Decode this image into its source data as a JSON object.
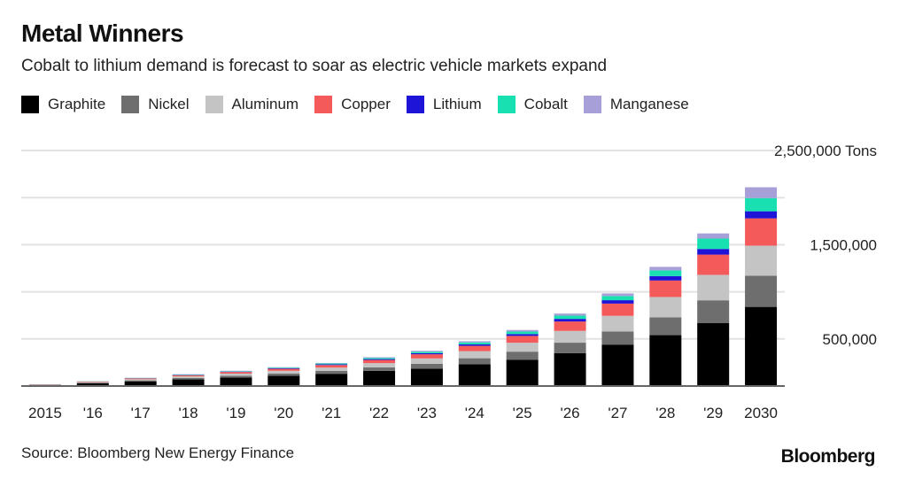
{
  "title": "Metal Winners",
  "subtitle": "Cobalt to lithium demand is forecast to soar as electric vehicle markets expand",
  "source": "Source: Bloomberg New Energy Finance",
  "brand": "Bloomberg",
  "chart_data": {
    "type": "bar",
    "stacked": true,
    "categories": [
      "2015",
      "'16",
      "'17",
      "'18",
      "'19",
      "'20",
      "'21",
      "'22",
      "'23",
      "'24",
      "'25",
      "'26",
      "'27",
      "'28",
      "'29",
      "2030"
    ],
    "y_tick_labels": [
      {
        "value": 2500000,
        "label": "2,500,000 Tons"
      },
      {
        "value": 1500000,
        "label": "1,500,000"
      },
      {
        "value": 500000,
        "label": "500,000"
      }
    ],
    "ylim": [
      0,
      2500000
    ],
    "grid": true,
    "series": [
      {
        "name": "Graphite",
        "color": "#000000",
        "values": [
          10000,
          30000,
          50000,
          70000,
          90000,
          110000,
          130000,
          160000,
          185000,
          230000,
          280000,
          350000,
          440000,
          540000,
          670000,
          840000
        ]
      },
      {
        "name": "Nickel",
        "color": "#6e6e6e",
        "values": [
          3000,
          6000,
          10000,
          15000,
          20000,
          24000,
          30000,
          38000,
          50000,
          65000,
          85000,
          110000,
          140000,
          190000,
          240000,
          330000
        ]
      },
      {
        "name": "Aluminum",
        "color": "#c4c4c4",
        "values": [
          3000,
          7000,
          12000,
          17000,
          22000,
          28000,
          36000,
          45000,
          58000,
          75000,
          95000,
          125000,
          165000,
          215000,
          270000,
          320000
        ]
      },
      {
        "name": "Copper",
        "color": "#f45a5a",
        "values": [
          2000,
          5000,
          9000,
          13000,
          17000,
          21000,
          27000,
          34000,
          44000,
          57000,
          72000,
          100000,
          130000,
          175000,
          215000,
          290000
        ]
      },
      {
        "name": "Lithium",
        "color": "#1e14d8",
        "values": [
          500,
          1000,
          2000,
          3000,
          4000,
          5000,
          7000,
          9000,
          12000,
          16000,
          20000,
          28000,
          36000,
          47000,
          60000,
          75000
        ]
      },
      {
        "name": "Cobalt",
        "color": "#18e0b0",
        "values": [
          500,
          1500,
          3000,
          4000,
          5000,
          7000,
          9000,
          12000,
          15000,
          20000,
          26000,
          34000,
          44000,
          60000,
          110000,
          140000
        ]
      },
      {
        "name": "Manganese",
        "color": "#a79fd8",
        "values": [
          500,
          1000,
          2000,
          3000,
          4000,
          5000,
          6000,
          8000,
          10000,
          13000,
          17000,
          22000,
          28000,
          38000,
          55000,
          115000
        ]
      }
    ]
  }
}
